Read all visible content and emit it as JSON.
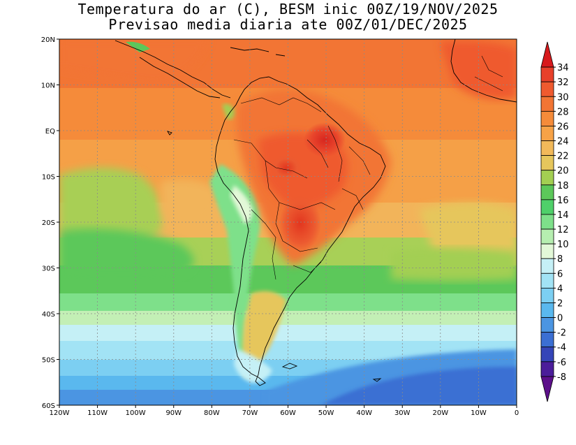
{
  "title_line1": "Temperatura do ar (C), BESM inic 00Z/19/NOV/2025",
  "title_line2": "Previsao media diaria ate 00Z/01/DEC/2025",
  "lat_labels": [
    "20N",
    "10N",
    "EQ",
    "10S",
    "20S",
    "30S",
    "40S",
    "50S",
    "60S"
  ],
  "lon_labels": [
    "120W",
    "110W",
    "100W",
    "90W",
    "80W",
    "70W",
    "60W",
    "50W",
    "40W",
    "30W",
    "20W",
    "10W",
    "0"
  ],
  "colorbar": {
    "levels": [
      "34",
      "32",
      "30",
      "28",
      "26",
      "24",
      "22",
      "20",
      "18",
      "16",
      "14",
      "12",
      "10",
      "8",
      "6",
      "4",
      "2",
      "0",
      "-2",
      "-4",
      "-6",
      "-8"
    ],
    "colors": [
      "#d7191c",
      "#e8402a",
      "#ef5a2f",
      "#f27534",
      "#f58b3a",
      "#f7a247",
      "#f2b95a",
      "#e6c65c",
      "#a3cf52",
      "#5cc85a",
      "#4fd06a",
      "#7ee08a",
      "#b6eeb0",
      "#e3f8d8",
      "#c5f0f6",
      "#a2e3f5",
      "#7ccff2",
      "#5ab8ee",
      "#4b95e2",
      "#3b6fd3",
      "#3545b8",
      "#4b1d9a",
      "#5c0f8a"
    ]
  }
}
